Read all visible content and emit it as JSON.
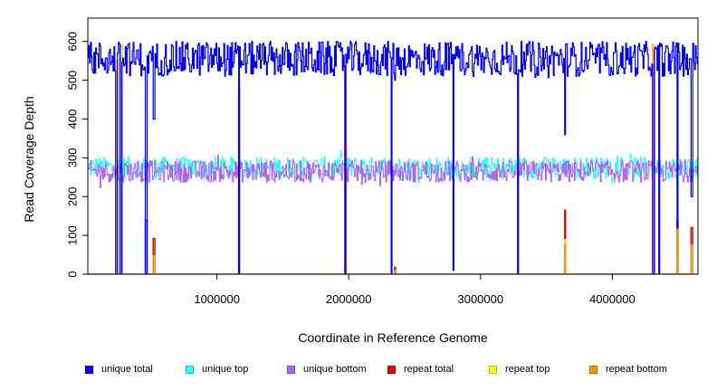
{
  "chart_data": {
    "type": "line",
    "title": "",
    "xlabel": "Coordinate in Reference Genome",
    "ylabel": "Read Coverage Depth",
    "xlim": [
      20000,
      4650000
    ],
    "ylim": [
      0,
      660
    ],
    "x_ticks": [
      1000000,
      2000000,
      3000000,
      4000000
    ],
    "x_tick_labels": [
      "1000000",
      "2000000",
      "3000000",
      "4000000"
    ],
    "y_ticks": [
      0,
      100,
      200,
      300,
      400,
      500,
      600
    ],
    "y_tick_labels": [
      "0",
      "100",
      "200",
      "300",
      "400",
      "500",
      "600"
    ],
    "grid": false,
    "legend_position": "bottom",
    "series": [
      {
        "name": "unique total",
        "color": "#0000ee",
        "baseline": 555,
        "noise": 45
      },
      {
        "name": "unique top",
        "color": "#33ffff",
        "baseline": 275,
        "noise": 28
      },
      {
        "name": "unique bottom",
        "color": "#b266ee",
        "baseline": 265,
        "noise": 28
      },
      {
        "name": "repeat total",
        "color": "#ee0000"
      },
      {
        "name": "repeat top",
        "color": "#ffff00"
      },
      {
        "name": "repeat bottom",
        "color": "#ee9900"
      }
    ],
    "coverage_dips": [
      {
        "x": 235000,
        "unique_total": 0,
        "repeat_total": 550,
        "repeat_bottom": 0
      },
      {
        "x": 268000,
        "unique_total": 0,
        "repeat_total": 590,
        "repeat_bottom": 0
      },
      {
        "x": 460000,
        "unique_total": 0,
        "repeat_total": 140,
        "repeat_bottom": 95
      },
      {
        "x": 520000,
        "unique_total": 400,
        "repeat_total": 92,
        "repeat_bottom": 45
      },
      {
        "x": 1165000,
        "unique_total": 0,
        "repeat_total": 480,
        "repeat_bottom": 0
      },
      {
        "x": 1970000,
        "unique_total": 0,
        "repeat_total": 550,
        "repeat_bottom": 0
      },
      {
        "x": 2320000,
        "unique_total": 0,
        "repeat_total": 0,
        "repeat_bottom": 0
      },
      {
        "x": 2350000,
        "unique_total": 500,
        "repeat_total": 18,
        "repeat_bottom": 8
      },
      {
        "x": 2790000,
        "unique_total": 10,
        "repeat_total": 0,
        "repeat_bottom": 0
      },
      {
        "x": 3280000,
        "unique_total": 0,
        "repeat_total": 0,
        "repeat_bottom": 0
      },
      {
        "x": 3640000,
        "unique_total": 360,
        "repeat_total": 165,
        "repeat_bottom": 75
      },
      {
        "x": 4310000,
        "unique_total": 0,
        "repeat_total": 590,
        "repeat_bottom": 0
      },
      {
        "x": 4350000,
        "unique_total": 0,
        "repeat_total": 0,
        "repeat_bottom": 0
      },
      {
        "x": 4490000,
        "unique_total": 120,
        "repeat_total": 140,
        "repeat_bottom": 115
      },
      {
        "x": 4600000,
        "unique_total": 200,
        "repeat_total": 120,
        "repeat_bottom": 75
      }
    ]
  }
}
